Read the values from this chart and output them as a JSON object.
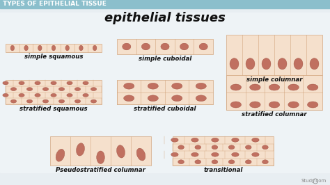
{
  "title": "epithelial tissues",
  "header": "TYPES OF EPITHELIAL TISSUE",
  "header_bg": "#8bbfcc",
  "header_text": "#ffffff",
  "bg_color": "#d8e4ea",
  "watermark": "Study.com",
  "cell_fill": "#f5e0cc",
  "cell_fill_light": "#faeade",
  "cell_stroke": "#d4a882",
  "nucleus_fill": "#c07060",
  "nucleus_stroke": "#a05040",
  "labels": [
    "simple squamous",
    "simple cuboidal",
    "simple columnar",
    "stratified squamous",
    "stratified cuboidal",
    "stratified columnar",
    "Pseudostratified columnar",
    "transitional"
  ],
  "title_fontsize": 13,
  "header_fontsize": 6.5,
  "label_fontsize": 6.2
}
